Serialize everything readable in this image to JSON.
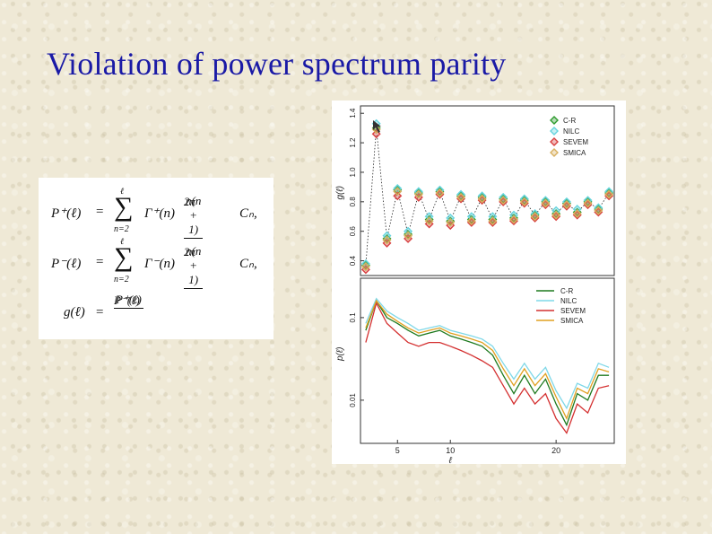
{
  "slide": {
    "title": "Violation of power spectrum parity"
  },
  "formulas": {
    "p_plus_lhs": "P⁺(ℓ)",
    "p_minus_lhs": "P⁻(ℓ)",
    "g_lhs": "g(ℓ)",
    "eq": "=",
    "sum_symbol": "∑",
    "sum_upper": "ℓ",
    "sum_lower": "n=2",
    "gamma_plus": "Γ⁺(n)",
    "gamma_minus": "Γ⁻(n)",
    "frac_num": "n(n + 1)",
    "frac_den": "2π",
    "cn_tail": "Cₙ,",
    "g_num": "P⁺(ℓ)",
    "g_den": "P⁻(ℓ)"
  },
  "chart_data": [
    {
      "type": "scatter",
      "ylabel": "g(ℓ)",
      "ylim": [
        0.3,
        1.45
      ],
      "xlim": [
        1.5,
        25.5
      ],
      "yticks": [
        0.4,
        0.6,
        0.8,
        1.0,
        1.2,
        1.4
      ],
      "ytick_labels": [
        "0.4",
        "0.6",
        "0.8",
        "1.0",
        "1.2",
        "1.4"
      ],
      "legend_position": "top-right",
      "series": [
        {
          "name": "C-R",
          "color": "#2e9b2e",
          "x": [
            2,
            3,
            4,
            5,
            6,
            7,
            8,
            9,
            10,
            11,
            12,
            13,
            14,
            15,
            16,
            17,
            18,
            19,
            20,
            21,
            22,
            23,
            24,
            25
          ],
          "y": [
            0.37,
            1.3,
            0.55,
            0.88,
            0.58,
            0.86,
            0.68,
            0.87,
            0.67,
            0.84,
            0.68,
            0.83,
            0.68,
            0.82,
            0.69,
            0.81,
            0.71,
            0.8,
            0.72,
            0.79,
            0.73,
            0.8,
            0.75,
            0.86
          ]
        },
        {
          "name": "NILC",
          "color": "#66d4de",
          "x": [
            2,
            3,
            4,
            5,
            6,
            7,
            8,
            9,
            10,
            11,
            12,
            13,
            14,
            15,
            16,
            17,
            18,
            19,
            20,
            21,
            22,
            23,
            24,
            25
          ],
          "y": [
            0.38,
            1.33,
            0.57,
            0.89,
            0.6,
            0.87,
            0.7,
            0.88,
            0.69,
            0.85,
            0.7,
            0.84,
            0.7,
            0.83,
            0.71,
            0.82,
            0.72,
            0.81,
            0.74,
            0.8,
            0.75,
            0.81,
            0.76,
            0.87
          ]
        },
        {
          "name": "SEVEM",
          "color": "#d84040",
          "x": [
            2,
            3,
            4,
            5,
            6,
            7,
            8,
            9,
            10,
            11,
            12,
            13,
            14,
            15,
            16,
            17,
            18,
            19,
            20,
            21,
            22,
            23,
            24,
            25
          ],
          "y": [
            0.34,
            1.26,
            0.52,
            0.84,
            0.55,
            0.83,
            0.65,
            0.85,
            0.64,
            0.82,
            0.66,
            0.81,
            0.66,
            0.8,
            0.67,
            0.79,
            0.69,
            0.78,
            0.7,
            0.77,
            0.71,
            0.78,
            0.73,
            0.84
          ]
        },
        {
          "name": "SMICA",
          "color": "#d8b060",
          "x": [
            2,
            3,
            4,
            5,
            6,
            7,
            8,
            9,
            10,
            11,
            12,
            13,
            14,
            15,
            16,
            17,
            18,
            19,
            20,
            21,
            22,
            23,
            24,
            25
          ],
          "y": [
            0.36,
            1.29,
            0.54,
            0.87,
            0.57,
            0.85,
            0.67,
            0.86,
            0.66,
            0.83,
            0.67,
            0.82,
            0.67,
            0.81,
            0.68,
            0.8,
            0.7,
            0.79,
            0.71,
            0.78,
            0.72,
            0.79,
            0.74,
            0.85
          ]
        }
      ]
    },
    {
      "type": "line",
      "ylabel": "p(ℓ)",
      "xlabel": "ℓ",
      "yscale": "log",
      "ylim": [
        0.003,
        0.3
      ],
      "xlim": [
        1.5,
        25.5
      ],
      "xticks": [
        5,
        10,
        20
      ],
      "xtick_labels": [
        "5",
        "10",
        "20"
      ],
      "yticks": [
        0.01,
        0.1
      ],
      "ytick_labels": [
        "0.01",
        "0.1"
      ],
      "legend_position": "top-right",
      "series": [
        {
          "name": "C-R",
          "color": "#1f7a1f",
          "x": [
            2,
            3,
            4,
            5,
            6,
            7,
            8,
            9,
            10,
            11,
            12,
            13,
            14,
            15,
            16,
            17,
            18,
            19,
            20,
            21,
            22,
            23,
            24,
            25
          ],
          "y": [
            0.07,
            0.16,
            0.1,
            0.085,
            0.07,
            0.06,
            0.065,
            0.07,
            0.06,
            0.055,
            0.05,
            0.045,
            0.035,
            0.02,
            0.012,
            0.02,
            0.012,
            0.018,
            0.009,
            0.005,
            0.012,
            0.01,
            0.02,
            0.02
          ]
        },
        {
          "name": "NILC",
          "color": "#7fd8e8",
          "x": [
            2,
            3,
            4,
            5,
            6,
            7,
            8,
            9,
            10,
            11,
            12,
            13,
            14,
            15,
            16,
            17,
            18,
            19,
            20,
            21,
            22,
            23,
            24,
            25
          ],
          "y": [
            0.085,
            0.17,
            0.12,
            0.1,
            0.085,
            0.07,
            0.075,
            0.08,
            0.07,
            0.065,
            0.06,
            0.055,
            0.045,
            0.028,
            0.018,
            0.028,
            0.018,
            0.025,
            0.013,
            0.008,
            0.016,
            0.014,
            0.028,
            0.025
          ]
        },
        {
          "name": "SEVEM",
          "color": "#d43030",
          "x": [
            2,
            3,
            4,
            5,
            6,
            7,
            8,
            9,
            10,
            11,
            12,
            13,
            14,
            15,
            16,
            17,
            18,
            19,
            20,
            21,
            22,
            23,
            24,
            25
          ],
          "y": [
            0.05,
            0.15,
            0.085,
            0.065,
            0.05,
            0.045,
            0.05,
            0.05,
            0.045,
            0.04,
            0.035,
            0.03,
            0.025,
            0.015,
            0.009,
            0.014,
            0.009,
            0.012,
            0.006,
            0.004,
            0.009,
            0.007,
            0.014,
            0.015
          ]
        },
        {
          "name": "SMICA",
          "color": "#e0a020",
          "x": [
            2,
            3,
            4,
            5,
            6,
            7,
            8,
            9,
            10,
            11,
            12,
            13,
            14,
            15,
            16,
            17,
            18,
            19,
            20,
            21,
            22,
            23,
            24,
            25
          ],
          "y": [
            0.075,
            0.16,
            0.11,
            0.09,
            0.075,
            0.065,
            0.07,
            0.075,
            0.065,
            0.06,
            0.055,
            0.05,
            0.04,
            0.024,
            0.015,
            0.024,
            0.015,
            0.021,
            0.011,
            0.006,
            0.014,
            0.012,
            0.024,
            0.022
          ]
        }
      ]
    }
  ]
}
